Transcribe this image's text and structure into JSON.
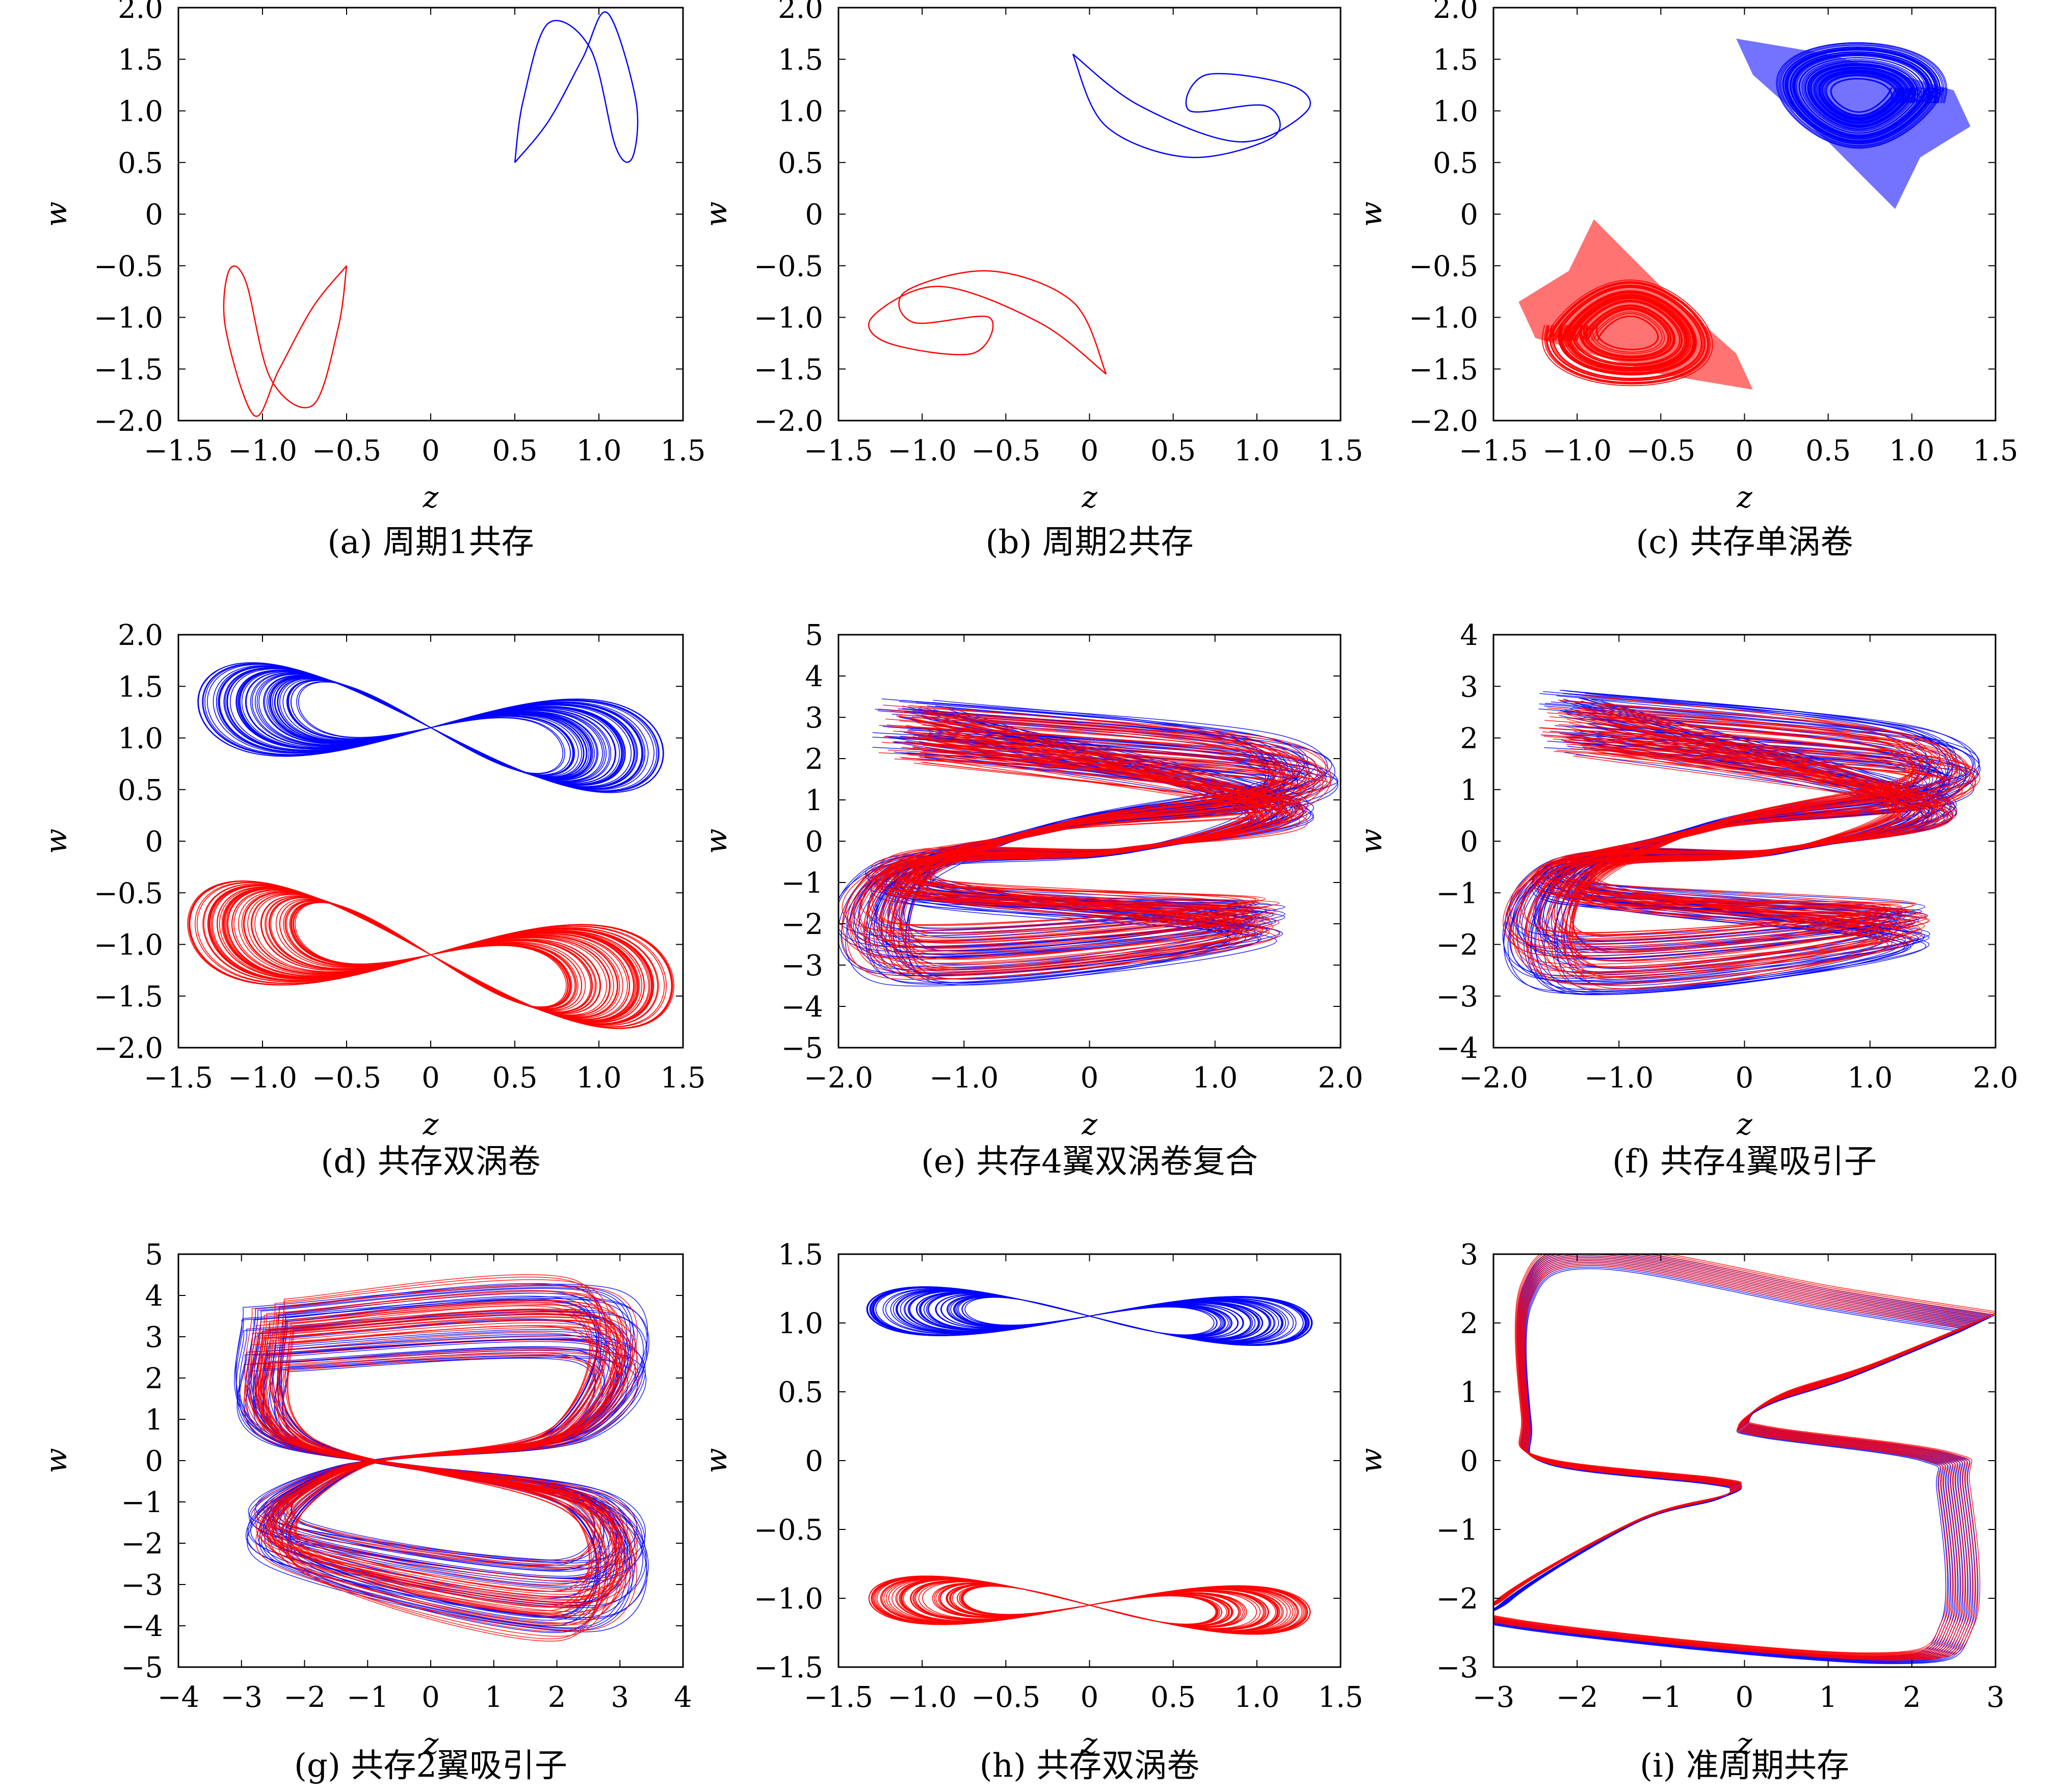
{
  "colors": {
    "series1": "#0000ff",
    "series2": "#ff0000",
    "axis": "#000000"
  },
  "chart_data": [
    {
      "type": "line",
      "caption": "(a) 周期1共存",
      "xlabel": "z",
      "ylabel": "w",
      "xlim": [
        -1.5,
        1.5
      ],
      "ylim": [
        -2.0,
        2.0
      ],
      "xticks": [
        "−1.5",
        "−1.0",
        "−0.5",
        "0",
        "0.5",
        "1.0",
        "1.5"
      ],
      "yticks": [
        "2.0",
        "1.5",
        "1.0",
        "0.5",
        "0",
        "−0.5",
        "−1.0",
        "−1.5",
        "−2.0"
      ],
      "grid": false,
      "pattern": "period1",
      "series": [
        {
          "color": "#0000ff",
          "points": [
            [
              0.5,
              0.5
            ],
            [
              0.55,
              1.1
            ],
            [
              0.7,
              1.85
            ],
            [
              0.95,
              1.6
            ],
            [
              1.1,
              0.65
            ],
            [
              1.2,
              0.55
            ],
            [
              1.22,
              1.1
            ],
            [
              1.05,
              1.95
            ],
            [
              0.9,
              1.5
            ],
            [
              0.7,
              0.9
            ],
            [
              0.5,
              0.5
            ]
          ]
        },
        {
          "color": "#ff0000",
          "points": [
            [
              -0.5,
              -0.5
            ],
            [
              -0.55,
              -1.1
            ],
            [
              -0.7,
              -1.85
            ],
            [
              -0.95,
              -1.6
            ],
            [
              -1.1,
              -0.65
            ],
            [
              -1.2,
              -0.55
            ],
            [
              -1.22,
              -1.1
            ],
            [
              -1.05,
              -1.95
            ],
            [
              -0.9,
              -1.5
            ],
            [
              -0.7,
              -0.9
            ],
            [
              -0.5,
              -0.5
            ]
          ]
        }
      ]
    },
    {
      "type": "line",
      "caption": "(b) 周期2共存",
      "xlabel": "z",
      "ylabel": "w",
      "xlim": [
        -1.5,
        1.5
      ],
      "ylim": [
        -2.0,
        2.0
      ],
      "xticks": [
        "−1.5",
        "−1.0",
        "−0.5",
        "0",
        "0.5",
        "1.0",
        "1.5"
      ],
      "yticks": [
        "2.0",
        "1.5",
        "1.0",
        "0.5",
        "0",
        "−0.5",
        "−1.0",
        "−1.5",
        "−2.0"
      ],
      "grid": false,
      "pattern": "period2",
      "series": [
        {
          "color": "#0000ff",
          "points": [
            [
              -0.1,
              1.55
            ],
            [
              0.3,
              1.05
            ],
            [
              0.9,
              0.7
            ],
            [
              1.3,
              1.0
            ],
            [
              1.2,
              1.25
            ],
            [
              0.7,
              1.35
            ],
            [
              0.6,
              1.0
            ],
            [
              1.05,
              1.05
            ],
            [
              1.1,
              0.75
            ],
            [
              0.6,
              0.55
            ],
            [
              0.1,
              0.85
            ],
            [
              -0.1,
              1.55
            ]
          ]
        },
        {
          "color": "#ff0000",
          "points": [
            [
              0.1,
              -1.55
            ],
            [
              -0.3,
              -1.05
            ],
            [
              -0.9,
              -0.7
            ],
            [
              -1.3,
              -1.0
            ],
            [
              -1.2,
              -1.25
            ],
            [
              -0.7,
              -1.35
            ],
            [
              -0.6,
              -1.0
            ],
            [
              -1.05,
              -1.05
            ],
            [
              -1.1,
              -0.75
            ],
            [
              -0.6,
              -0.55
            ],
            [
              -0.1,
              -0.85
            ],
            [
              0.1,
              -1.55
            ]
          ]
        }
      ]
    },
    {
      "type": "line",
      "caption": "(c) 共存单涡卷",
      "xlabel": "z",
      "ylabel": "w",
      "xlim": [
        -1.5,
        1.5
      ],
      "ylim": [
        -2.0,
        2.0
      ],
      "xticks": [
        "−1.5",
        "−1.0",
        "−0.5",
        "0",
        "0.5",
        "1.0",
        "1.5"
      ],
      "yticks": [
        "2.0",
        "1.5",
        "1.0",
        "0.5",
        "0",
        "−0.5",
        "−1.0",
        "−1.5",
        "−2.0"
      ],
      "grid": false,
      "pattern": "single-scroll",
      "series": [
        {
          "color": "#0000ff",
          "center": [
            0.7,
            1.15
          ],
          "spread": [
            0.62,
            0.55
          ],
          "window": [
            0.0,
            1.3,
            0.1,
            1.7
          ]
        },
        {
          "color": "#ff0000",
          "center": [
            -0.7,
            -1.15
          ],
          "spread": [
            0.62,
            0.55
          ],
          "window": [
            -1.3,
            0.0,
            -1.7,
            -0.1
          ]
        }
      ]
    },
    {
      "type": "line",
      "caption": "(d) 共存双涡卷",
      "xlabel": "z",
      "ylabel": "w",
      "xlim": [
        -1.5,
        1.5
      ],
      "ylim": [
        -2.0,
        2.0
      ],
      "xticks": [
        "−1.5",
        "−1.0",
        "−0.5",
        "0",
        "0.5",
        "1.0",
        "1.5"
      ],
      "yticks": [
        "2.0",
        "1.5",
        "1.0",
        "0.5",
        "0",
        "−0.5",
        "−1.0",
        "−1.5",
        "−2.0"
      ],
      "grid": false,
      "pattern": "double-scroll",
      "series": [
        {
          "color": "#0000ff",
          "center": [
            0.0,
            1.1
          ],
          "amp": [
            1.4,
            0.5
          ],
          "tilt": -0.25
        },
        {
          "color": "#ff0000",
          "center": [
            0.0,
            -1.1
          ],
          "amp": [
            1.45,
            0.55
          ],
          "tilt": -0.3
        }
      ]
    },
    {
      "type": "line",
      "caption": "(e) 共存4翼双涡卷复合",
      "xlabel": "z",
      "ylabel": "w",
      "xlim": [
        -2.0,
        2.0
      ],
      "ylim": [
        -5,
        5
      ],
      "xticks": [
        "−2.0",
        "−1.0",
        "0",
        "1.0",
        "2.0"
      ],
      "yticks": [
        "5",
        "4",
        "3",
        "2",
        "1",
        "0",
        "−1",
        "−2",
        "−3",
        "−4",
        "−5"
      ],
      "grid": false,
      "pattern": "four-wing",
      "series": [
        {
          "color": "#0000ff",
          "xr": 1.75,
          "yr": 3.5,
          "inner": 1.2
        },
        {
          "color": "#ff0000",
          "xr": 1.7,
          "yr": 3.3,
          "inner": 1.1
        }
      ]
    },
    {
      "type": "line",
      "caption": "(f) 共存4翼吸引子",
      "xlabel": "z",
      "ylabel": "w",
      "xlim": [
        -2.0,
        2.0
      ],
      "ylim": [
        -4,
        4
      ],
      "xticks": [
        "−2.0",
        "−1.0",
        "0",
        "1.0",
        "2.0"
      ],
      "yticks": [
        "4",
        "3",
        "2",
        "1",
        "0",
        "−1",
        "−2",
        "−3",
        "−4"
      ],
      "grid": false,
      "pattern": "four-wing",
      "series": [
        {
          "color": "#0000ff",
          "xr": 1.65,
          "yr": 3.0,
          "inner": 1.0
        },
        {
          "color": "#ff0000",
          "xr": 1.65,
          "yr": 2.9,
          "inner": 1.0
        }
      ]
    },
    {
      "type": "line",
      "caption": "(g) 共存2翼吸引子",
      "xlabel": "z",
      "ylabel": "w",
      "xlim": [
        -4,
        4
      ],
      "ylim": [
        -5,
        5
      ],
      "xticks": [
        "−4",
        "−3",
        "−2",
        "−1",
        "0",
        "1",
        "2",
        "3",
        "4"
      ],
      "yticks": [
        "5",
        "4",
        "3",
        "2",
        "1",
        "0",
        "−1",
        "−2",
        "−3",
        "−4",
        "−5"
      ],
      "grid": false,
      "pattern": "two-wing",
      "series": [
        {
          "color": "#0000ff",
          "xr": 3.0,
          "yr": 4.2
        },
        {
          "color": "#ff0000",
          "xr": 2.9,
          "yr": 4.4
        }
      ]
    },
    {
      "type": "line",
      "caption": "(h) 共存双涡卷",
      "xlabel": "z",
      "ylabel": "w",
      "xlim": [
        -1.5,
        1.5
      ],
      "ylim": [
        -1.5,
        1.5
      ],
      "xticks": [
        "−1.5",
        "−1.0",
        "−0.5",
        "0",
        "0.5",
        "1.0",
        "1.5"
      ],
      "yticks": [
        "1.5",
        "1.0",
        "0.5",
        "0",
        "−0.5",
        "−1.0",
        "−1.5"
      ],
      "grid": false,
      "pattern": "double-scroll",
      "series": [
        {
          "color": "#0000ff",
          "center": [
            0.0,
            1.05
          ],
          "amp": [
            1.35,
            0.2
          ],
          "tilt": -0.05
        },
        {
          "color": "#ff0000",
          "center": [
            0.0,
            -1.05
          ],
          "amp": [
            1.35,
            0.2
          ],
          "tilt": -0.05
        }
      ]
    },
    {
      "type": "line",
      "caption": "(i) 准周期共存",
      "xlabel": "z",
      "ylabel": "w",
      "xlim": [
        -3,
        3
      ],
      "ylim": [
        -3,
        3
      ],
      "xticks": [
        "−3",
        "−2",
        "−1",
        "0",
        "1",
        "2",
        "3"
      ],
      "yticks": [
        "3",
        "2",
        "1",
        "0",
        "−1",
        "−2",
        "−3"
      ],
      "grid": false,
      "pattern": "quasi-periodic",
      "series": [
        {
          "color": "#0000ff",
          "points": [
            [
              2.8,
              2.0
            ],
            [
              1.0,
              2.35
            ],
            [
              -1.8,
              2.95
            ],
            [
              -2.6,
              2.4
            ],
            [
              -2.6,
              0.6
            ],
            [
              -2.4,
              0.0
            ],
            [
              -0.4,
              -0.3
            ],
            [
              -0.1,
              -0.4
            ],
            [
              -0.3,
              -0.55
            ],
            [
              -1.3,
              -0.9
            ],
            [
              -2.85,
              -2.05
            ],
            [
              -2.7,
              -2.4
            ],
            [
              1.6,
              -2.9
            ],
            [
              2.55,
              -2.4
            ],
            [
              2.5,
              -0.4
            ],
            [
              2.3,
              0.05
            ],
            [
              0.3,
              0.4
            ],
            [
              0.0,
              0.55
            ],
            [
              0.4,
              0.9
            ],
            [
              1.4,
              1.3
            ],
            [
              2.8,
              2.0
            ]
          ]
        },
        {
          "color": "#ff0000",
          "points": [
            [
              2.85,
              2.05
            ],
            [
              1.0,
              2.4
            ],
            [
              -1.8,
              3.0
            ],
            [
              -2.62,
              2.45
            ],
            [
              -2.62,
              0.6
            ],
            [
              -2.42,
              0.02
            ],
            [
              -0.4,
              -0.28
            ],
            [
              -0.1,
              -0.38
            ],
            [
              -0.3,
              -0.53
            ],
            [
              -1.3,
              -0.88
            ],
            [
              -2.9,
              -2.0
            ],
            [
              -2.72,
              -2.36
            ],
            [
              1.6,
              -2.85
            ],
            [
              2.57,
              -2.35
            ],
            [
              2.52,
              -0.38
            ],
            [
              2.32,
              0.07
            ],
            [
              0.3,
              0.42
            ],
            [
              0.0,
              0.57
            ],
            [
              0.4,
              0.92
            ],
            [
              1.4,
              1.32
            ],
            [
              2.85,
              2.05
            ]
          ]
        }
      ]
    }
  ]
}
